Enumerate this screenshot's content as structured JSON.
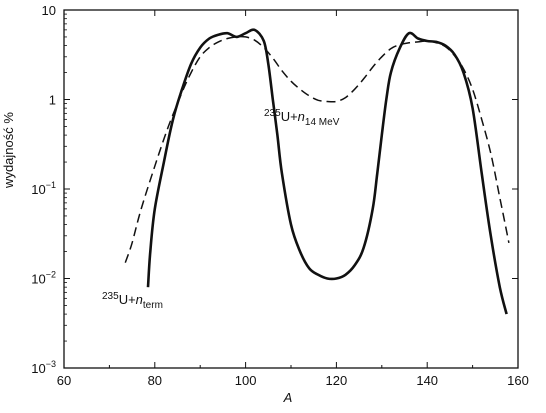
{
  "chart_data": {
    "type": "line",
    "xlabel": "A",
    "ylabel": "wydajność %",
    "xlim": [
      60,
      160
    ],
    "ylim": [
      0.001,
      10
    ],
    "yscale": "log",
    "grid": false,
    "x_ticks": [
      {
        "value": 60,
        "label": "60"
      },
      {
        "value": 80,
        "label": "80"
      },
      {
        "value": 100,
        "label": "100"
      },
      {
        "value": 120,
        "label": "120"
      },
      {
        "value": 140,
        "label": "140"
      },
      {
        "value": 160,
        "label": "160"
      }
    ],
    "y_ticks": [
      {
        "value": 10,
        "base": "10",
        "exp": ""
      },
      {
        "value": 1,
        "base": "1",
        "exp": ""
      },
      {
        "value": 0.1,
        "base": "10",
        "exp": "−1"
      },
      {
        "value": 0.01,
        "base": "10",
        "exp": "−2"
      },
      {
        "value": 0.001,
        "base": "10",
        "exp": "−3"
      }
    ],
    "series": [
      {
        "style": "solid",
        "label": {
          "mass": "235",
          "element": "U+",
          "particle": "n",
          "sub": "term"
        },
        "x": [
          78.5,
          79,
          80,
          82,
          84,
          86,
          88,
          90,
          92,
          94,
          96,
          98,
          100,
          102,
          104,
          105,
          106,
          107,
          108,
          110,
          112,
          114,
          116,
          118,
          120,
          122,
          124,
          126,
          128,
          129,
          130,
          131,
          132,
          134,
          136,
          138,
          140,
          142,
          144,
          146,
          148,
          150,
          152,
          154,
          156,
          157.5
        ],
        "y": [
          0.008,
          0.02,
          0.06,
          0.2,
          0.6,
          1.3,
          2.5,
          3.8,
          4.8,
          5.3,
          5.5,
          5.0,
          5.5,
          6.0,
          4.5,
          2.5,
          1.0,
          0.4,
          0.15,
          0.04,
          0.02,
          0.013,
          0.011,
          0.01,
          0.01,
          0.011,
          0.014,
          0.022,
          0.06,
          0.15,
          0.4,
          1.0,
          2.0,
          3.8,
          5.5,
          4.8,
          4.5,
          4.4,
          4.0,
          3.2,
          2.0,
          0.8,
          0.15,
          0.03,
          0.008,
          0.004
        ]
      },
      {
        "style": "dashed",
        "label": {
          "mass": "235",
          "element": "U+",
          "particle": "n",
          "sub": "14 MeV"
        },
        "x": [
          73.5,
          75,
          77,
          80,
          83,
          86,
          88,
          90,
          92,
          94,
          96,
          98,
          100,
          102,
          104,
          106,
          108,
          110,
          112,
          114,
          116,
          118,
          120,
          122,
          124,
          126,
          128,
          130,
          132,
          134,
          136,
          138,
          140,
          142,
          144,
          146,
          148,
          150,
          152,
          154,
          156,
          158
        ],
        "y": [
          0.015,
          0.025,
          0.06,
          0.18,
          0.5,
          1.2,
          2.0,
          3.0,
          3.8,
          4.4,
          4.8,
          5.0,
          5.0,
          4.6,
          3.8,
          2.9,
          2.1,
          1.6,
          1.3,
          1.1,
          0.98,
          0.95,
          0.95,
          1.05,
          1.3,
          1.7,
          2.3,
          3.0,
          3.7,
          4.1,
          4.3,
          4.4,
          4.5,
          4.3,
          3.9,
          3.1,
          2.2,
          1.3,
          0.6,
          0.25,
          0.08,
          0.025
        ]
      }
    ]
  }
}
